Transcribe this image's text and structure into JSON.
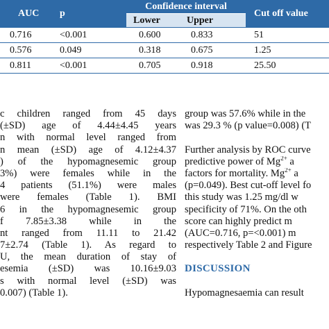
{
  "table": {
    "header": {
      "auc": "AUC",
      "p": "p",
      "confidence_interval": "Confidence interval",
      "lower": "Lower",
      "upper": "Upper",
      "cutoff": "Cut off value"
    },
    "rows": [
      {
        "auc": "0.716",
        "p": "<0.001",
        "lower": "0.600",
        "upper": "0.833",
        "cutoff": "51"
      },
      {
        "auc": "0.576",
        "p": "0.049",
        "lower": "0.318",
        "upper": "0.675",
        "cutoff": "1.25"
      },
      {
        "auc": "0.811",
        "p": "<0.001",
        "lower": "0.705",
        "upper": "0.918",
        "cutoff": "25.50"
      }
    ]
  },
  "left_column": [
    "c children ranged from 45 days",
    "(±SD) age of 4.44±4.45 years",
    "n with normal level ranged from",
    "n mean (±SD) age of 4.12±4.37",
    ") of the hypomagnesemic group",
    "3%) were females while in the",
    "4 patients (51.1%) were males",
    "were females (Table 1). BMI",
    "6 in the hypomagnesemic group",
    "f  7.85±3.38  while  in  the",
    "nt ranged from 11.11 to 21.42",
    "7±2.74 (Table 1). As regard to",
    "U, the mean duration of stay of",
    "esemia (±SD) was 10.16±9.03",
    "s with normal level (±SD) was",
    "0.007) (Table 1)."
  ],
  "right_column": {
    "para1": [
      "group was 57.6% while in the",
      "was 29.3 % (p value=0.008) (T"
    ],
    "para2_line1": "Further analysis by ROC curve",
    "para2_line2_pre": "predictive power of Mg",
    "para2_line2_sup": "2+",
    "para2_line2_post": " a",
    "para2_line3_pre": "factors for mortality. Mg",
    "para2_line3_sup": "2+",
    "para2_line3_post": " a",
    "para2_rest": [
      "(p=0.049). Best cut-off level fo",
      "this study was 1.25 mg/dl w",
      "specificity of 71%. On the oth",
      "score can highly predict m",
      "(AUC=0.716, p=<0.001) m",
      "respectively Table 2 and Figure"
    ],
    "heading": "DISCUSSION",
    "para3": "Hypomagnesaemia can result"
  }
}
